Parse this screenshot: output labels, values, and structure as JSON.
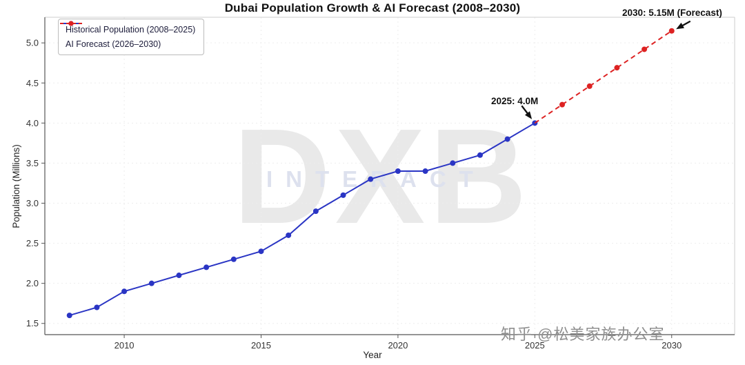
{
  "page": {
    "watermark_main": "DXB",
    "watermark_sub": "INTERACT",
    "watermark_social": "知乎 @松美家族办公室"
  },
  "chart_data": {
    "type": "line",
    "title": "Dubai Population Growth & AI Forecast (2008–2030)",
    "xlabel": "Year",
    "ylabel": "Population (Millions)",
    "xlim": [
      2007.1,
      2032.3
    ],
    "ylim": [
      1.36,
      5.32
    ],
    "xticks": [
      2010,
      2015,
      2020,
      2025,
      2030
    ],
    "yticks": [
      1.5,
      2.0,
      2.5,
      3.0,
      3.5,
      4.0,
      4.5,
      5.0
    ],
    "grid": true,
    "legend_position": "upper-left",
    "series": [
      {
        "name": "Historical Population (2008–2025)",
        "color": "#2a35c4",
        "style": "solid",
        "x": [
          2008,
          2009,
          2010,
          2011,
          2012,
          2013,
          2014,
          2015,
          2016,
          2017,
          2018,
          2019,
          2020,
          2021,
          2022,
          2023,
          2024,
          2025
        ],
        "y": [
          1.6,
          1.7,
          1.9,
          2.0,
          2.1,
          2.2,
          2.3,
          2.4,
          2.6,
          2.9,
          3.1,
          3.3,
          3.4,
          3.4,
          3.5,
          3.6,
          3.8,
          4.0
        ]
      },
      {
        "name": "AI Forecast (2026–2030)",
        "color": "#dd2222",
        "style": "dashed",
        "marker_skip_first": true,
        "x": [
          2025,
          2026,
          2027,
          2028,
          2029,
          2030
        ],
        "y": [
          4.0,
          4.23,
          4.46,
          4.69,
          4.92,
          5.15
        ]
      }
    ],
    "annotations": [
      {
        "text": "2025: 4.0M",
        "x": 2025,
        "y": 4.0
      },
      {
        "text": "2030: 5.15M (Forecast)",
        "x": 2030,
        "y": 5.15
      }
    ]
  }
}
